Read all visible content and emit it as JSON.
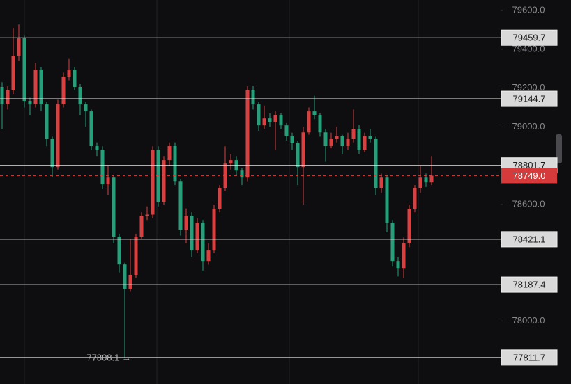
{
  "chart_data": {
    "type": "candlestick",
    "open": [
      79206,
      79116,
      79188,
      79367,
      79457,
      79134,
      79116,
      79295,
      79116,
      78937,
      78793,
      79116,
      79259,
      79295,
      79206,
      79116,
      79080,
      78901,
      78883,
      78704,
      78739,
      78435,
      78291,
      78166,
      78237,
      78435,
      78542,
      78548,
      78883,
      78614,
      78829,
      78901,
      78721,
      78470,
      78542,
      78363,
      78506,
      78309,
      78363,
      78578,
      78686,
      78811,
      78829,
      78775,
      78739,
      79188,
      79116,
      79008,
      79044,
      79026,
      79062,
      79008,
      78955,
      78919,
      78793,
      78972,
      79080,
      79062,
      78972,
      78901,
      78937,
      78955,
      78901,
      78937,
      78990,
      78883,
      78955,
      78937,
      78686,
      78739,
      78506,
      78309,
      78273,
      78399,
      78578,
      78686,
      78739,
      78714
    ],
    "high": [
      79230,
      79210,
      79510,
      79528,
      79470,
      79150,
      79330,
      79310,
      79130,
      78950,
      79140,
      79280,
      79350,
      79310,
      79220,
      79130,
      79090,
      78920,
      78900,
      78800,
      78750,
      78450,
      78300,
      78420,
      78450,
      78560,
      78590,
      78900,
      78900,
      78850,
      78920,
      78920,
      78730,
      78580,
      78560,
      78530,
      78520,
      78400,
      78600,
      78700,
      78900,
      78860,
      78850,
      78790,
      79210,
      79210,
      79130,
      79110,
      79070,
      79080,
      79070,
      79020,
      78970,
      78930,
      79000,
      79100,
      79160,
      79070,
      78990,
      78970,
      79000,
      78960,
      78970,
      79090,
      79010,
      78970,
      78990,
      78950,
      78760,
      78750,
      78520,
      78330,
      78430,
      78600,
      78700,
      78800,
      78760,
      78850
    ],
    "low": [
      78990,
      79090,
      79170,
      79340,
      79100,
      79060,
      79100,
      79080,
      78900,
      78740,
      78780,
      79100,
      79240,
      79190,
      79060,
      79000,
      78880,
      78850,
      78680,
      78650,
      78400,
      78250,
      77808.1,
      78150,
      78220,
      78420,
      78520,
      78530,
      78590,
      78600,
      78800,
      78700,
      78440,
      78400,
      78330,
      78350,
      78260,
      78290,
      78350,
      78560,
      78670,
      78780,
      78750,
      78700,
      78720,
      79090,
      78980,
      78990,
      79000,
      78880,
      78990,
      78930,
      78880,
      78700,
      78600,
      78960,
      79040,
      78950,
      78820,
      78890,
      78920,
      78860,
      78880,
      78920,
      78860,
      78870,
      78920,
      78650,
      78660,
      78460,
      78280,
      78230,
      78220,
      78380,
      78560,
      78660,
      78690,
      78700
    ],
    "close": [
      79116,
      79188,
      79367,
      79457,
      79134,
      79116,
      79295,
      79116,
      78937,
      78793,
      79116,
      79259,
      79295,
      79206,
      79116,
      79080,
      78901,
      78883,
      78704,
      78739,
      78435,
      78291,
      78166,
      78237,
      78435,
      78542,
      78548,
      78883,
      78614,
      78829,
      78901,
      78721,
      78470,
      78542,
      78363,
      78506,
      78309,
      78363,
      78578,
      78686,
      78811,
      78829,
      78775,
      78739,
      79188,
      79116,
      79008,
      79044,
      79026,
      79062,
      79008,
      78955,
      78919,
      78793,
      78972,
      79080,
      79062,
      78972,
      78901,
      78937,
      78955,
      78901,
      78937,
      78990,
      78883,
      78955,
      78937,
      78686,
      78739,
      78506,
      78309,
      78273,
      78399,
      78578,
      78686,
      78739,
      78714,
      78749
    ],
    "up_color": "#d9403f",
    "down_color": "#26a07a",
    "ylim": [
      77675,
      79654
    ],
    "yticks": [
      {
        "value": 78000,
        "label": "78000.0"
      },
      {
        "value": 78200,
        "label": "78200.0"
      },
      {
        "value": 78400,
        "label": "78400.0"
      },
      {
        "value": 78600,
        "label": "78600.0"
      },
      {
        "value": 78800,
        "label": "78800.0"
      },
      {
        "value": 79000,
        "label": "79000.0"
      },
      {
        "value": 79200,
        "label": "79200.0"
      },
      {
        "value": 79400,
        "label": "79400.0"
      },
      {
        "value": 79600,
        "label": "79600.0"
      }
    ],
    "levels": [
      79459.7,
      79144.7,
      78801.7,
      78421.1,
      78187.4,
      77811.7
    ],
    "current_price": {
      "value": 78749,
      "label": "78749.0"
    },
    "low_annotation": {
      "value": 77808.1,
      "label": "77808.1 →"
    }
  }
}
